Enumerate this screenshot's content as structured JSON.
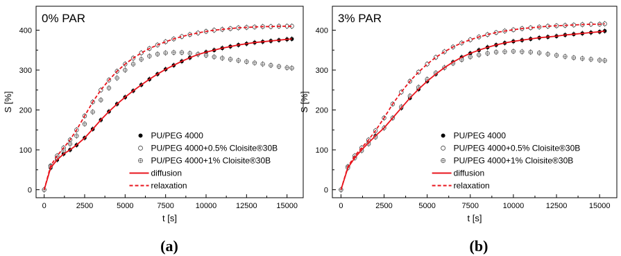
{
  "chart_data": [
    {
      "type": "scatter",
      "panel_label": "(a)",
      "title": "0% PAR",
      "xlabel": "t [s]",
      "ylabel": "S [%]",
      "xlim": [
        -500,
        16000
      ],
      "ylim": [
        -20,
        460
      ],
      "xticks": [
        0,
        2500,
        5000,
        7500,
        10000,
        12500,
        15000
      ],
      "yticks": [
        0,
        100,
        200,
        300,
        400
      ],
      "grid": false,
      "legend_position": "bottom-right",
      "series": [
        {
          "name": "PU/PEG 4000",
          "marker": "filled-circle",
          "x": [
            0,
            400,
            800,
            1200,
            1600,
            2000,
            2500,
            3000,
            3500,
            4000,
            4500,
            5000,
            5500,
            6000,
            6500,
            7000,
            7500,
            8000,
            8500,
            9000,
            9500,
            10000,
            10500,
            11000,
            11500,
            12000,
            12500,
            13000,
            13500,
            14000,
            14500,
            15000,
            15300
          ],
          "y": [
            0,
            55,
            75,
            90,
            100,
            112,
            130,
            152,
            175,
            196,
            215,
            232,
            248,
            263,
            277,
            290,
            302,
            312,
            322,
            331,
            339,
            345,
            350,
            355,
            359,
            363,
            366,
            369,
            371,
            373,
            375,
            377,
            378
          ]
        },
        {
          "name": "PU/PEG 4000+0.5% Cloisite®30B",
          "marker": "open-circle",
          "x": [
            0,
            400,
            800,
            1200,
            1600,
            2000,
            2500,
            3000,
            3500,
            4000,
            4500,
            5000,
            5500,
            6000,
            6500,
            7000,
            7500,
            8000,
            8500,
            9000,
            9500,
            10000,
            10500,
            11000,
            11500,
            12000,
            12500,
            13000,
            13500,
            14000,
            14500,
            15000,
            15300
          ],
          "y": [
            0,
            60,
            85,
            105,
            125,
            150,
            185,
            220,
            250,
            275,
            297,
            315,
            330,
            343,
            354,
            363,
            371,
            378,
            384,
            389,
            393,
            397,
            400,
            402,
            404,
            406,
            407,
            408,
            409,
            409,
            410,
            410,
            410
          ]
        },
        {
          "name": "PU/PEG 4000+1% Cloisite®30B",
          "marker": "crossed-circle",
          "x": [
            0,
            400,
            800,
            1200,
            1600,
            2000,
            2500,
            3000,
            3500,
            4000,
            4500,
            5000,
            5500,
            6000,
            6500,
            7000,
            7500,
            8000,
            8500,
            9000,
            9500,
            10000,
            10500,
            11000,
            11500,
            12000,
            12500,
            13000,
            13500,
            14000,
            14500,
            15000,
            15300
          ],
          "y": [
            0,
            58,
            80,
            98,
            115,
            135,
            165,
            195,
            225,
            255,
            280,
            300,
            315,
            327,
            335,
            340,
            343,
            344,
            344,
            342,
            340,
            337,
            333,
            330,
            327,
            324,
            321,
            318,
            315,
            312,
            309,
            306,
            305
          ]
        },
        {
          "name": "diffusion",
          "line": "solid",
          "x": [
            0,
            400,
            800,
            1200,
            1600,
            2000,
            2500,
            3000,
            3500,
            4000,
            4500,
            5000,
            5500,
            6000,
            6500,
            7000,
            7500,
            8000,
            8500,
            9000,
            9500,
            10000,
            10500,
            11000,
            11500,
            12000,
            12500,
            13000,
            13500,
            14000,
            14500,
            15000,
            15300
          ],
          "y": [
            0,
            55,
            75,
            90,
            100,
            112,
            130,
            152,
            175,
            196,
            215,
            232,
            248,
            263,
            277,
            290,
            302,
            312,
            322,
            331,
            339,
            345,
            350,
            355,
            359,
            363,
            366,
            369,
            371,
            373,
            375,
            377,
            378
          ]
        },
        {
          "name": "relaxation",
          "line": "dashed",
          "x": [
            0,
            400,
            800,
            1200,
            1600,
            2000,
            2500,
            3000,
            3500,
            4000,
            4500,
            5000,
            5500,
            6000,
            6500,
            7000,
            7500,
            8000,
            8500,
            9000,
            9500,
            10000,
            10500,
            11000,
            11500,
            12000,
            12500,
            13000,
            13500,
            14000,
            14500,
            15000,
            15300
          ],
          "y": [
            0,
            60,
            85,
            105,
            125,
            150,
            185,
            220,
            250,
            275,
            297,
            315,
            330,
            343,
            354,
            363,
            371,
            378,
            384,
            389,
            393,
            397,
            400,
            402,
            404,
            406,
            407,
            408,
            409,
            409,
            410,
            410,
            410
          ]
        }
      ]
    },
    {
      "type": "scatter",
      "panel_label": "(b)",
      "title": "3% PAR",
      "xlabel": "t [s]",
      "ylabel": "S [%]",
      "xlim": [
        -500,
        16000
      ],
      "ylim": [
        -20,
        460
      ],
      "xticks": [
        0,
        2500,
        5000,
        7500,
        10000,
        12500,
        15000
      ],
      "yticks": [
        0,
        100,
        200,
        300,
        400
      ],
      "grid": false,
      "legend_position": "bottom-right",
      "series": [
        {
          "name": "PU/PEG 4000",
          "marker": "filled-circle",
          "x": [
            0,
            400,
            800,
            1200,
            1600,
            2000,
            2500,
            3000,
            3500,
            4000,
            4500,
            5000,
            5500,
            6000,
            6500,
            7000,
            7500,
            8000,
            8500,
            9000,
            9500,
            10000,
            10500,
            11000,
            11500,
            12000,
            12500,
            13000,
            13500,
            14000,
            14500,
            15000,
            15300
          ],
          "y": [
            0,
            55,
            80,
            100,
            118,
            135,
            155,
            180,
            205,
            230,
            252,
            272,
            290,
            306,
            320,
            332,
            342,
            350,
            357,
            363,
            368,
            372,
            375,
            378,
            381,
            383,
            385,
            388,
            390,
            392,
            394,
            396,
            398
          ]
        },
        {
          "name": "PU/PEG 4000+0.5% Cloisite®30B",
          "marker": "open-circle",
          "x": [
            0,
            400,
            800,
            1200,
            1600,
            2000,
            2500,
            3000,
            3500,
            4000,
            4500,
            5000,
            5500,
            6000,
            6500,
            7000,
            7500,
            8000,
            8500,
            9000,
            9500,
            10000,
            10500,
            11000,
            11500,
            12000,
            12500,
            13000,
            13500,
            14000,
            14500,
            15000,
            15300
          ],
          "y": [
            0,
            58,
            85,
            105,
            125,
            148,
            180,
            215,
            245,
            272,
            295,
            315,
            332,
            346,
            358,
            368,
            376,
            383,
            389,
            394,
            398,
            401,
            404,
            406,
            408,
            410,
            411,
            412,
            413,
            414,
            415,
            415,
            416
          ]
        },
        {
          "name": "PU/PEG 4000+1% Cloisite®30B",
          "marker": "crossed-circle",
          "x": [
            0,
            400,
            800,
            1200,
            1600,
            2000,
            2500,
            3000,
            3500,
            4000,
            4500,
            5000,
            5500,
            6000,
            6500,
            7000,
            7500,
            8000,
            8500,
            9000,
            9500,
            10000,
            10500,
            11000,
            11500,
            12000,
            12500,
            13000,
            13500,
            14000,
            14500,
            15000,
            15300
          ],
          "y": [
            0,
            55,
            80,
            98,
            115,
            132,
            155,
            180,
            208,
            235,
            257,
            277,
            293,
            306,
            317,
            326,
            333,
            338,
            342,
            345,
            346,
            347,
            346,
            345,
            343,
            340,
            337,
            334,
            331,
            329,
            327,
            325,
            324
          ]
        },
        {
          "name": "diffusion",
          "line": "solid",
          "x": [
            0,
            400,
            800,
            1200,
            1600,
            2000,
            2500,
            3000,
            3500,
            4000,
            4500,
            5000,
            5500,
            6000,
            6500,
            7000,
            7500,
            8000,
            8500,
            9000,
            9500,
            10000,
            10500,
            11000,
            11500,
            12000,
            12500,
            13000,
            13500,
            14000,
            14500,
            15000,
            15300
          ],
          "y": [
            0,
            55,
            80,
            100,
            118,
            135,
            155,
            180,
            205,
            230,
            252,
            272,
            290,
            306,
            320,
            332,
            342,
            350,
            357,
            363,
            368,
            372,
            375,
            378,
            381,
            383,
            385,
            388,
            390,
            392,
            394,
            396,
            398
          ]
        },
        {
          "name": "relaxation",
          "line": "dashed",
          "x": [
            0,
            400,
            800,
            1200,
            1600,
            2000,
            2500,
            3000,
            3500,
            4000,
            4500,
            5000,
            5500,
            6000,
            6500,
            7000,
            7500,
            8000,
            8500,
            9000,
            9500,
            10000,
            10500,
            11000,
            11500,
            12000,
            12500,
            13000,
            13500,
            14000,
            14500,
            15000,
            15300
          ],
          "y": [
            0,
            58,
            85,
            105,
            125,
            148,
            180,
            215,
            245,
            272,
            295,
            315,
            332,
            346,
            358,
            368,
            376,
            383,
            389,
            394,
            398,
            401,
            404,
            406,
            408,
            410,
            411,
            412,
            413,
            414,
            415,
            415,
            416
          ]
        }
      ]
    }
  ],
  "colors": {
    "fit_line": "#e8141c",
    "marker": "#000000",
    "axis": "#000000",
    "open_marker": "#444444",
    "crossed_marker": "#555555"
  }
}
